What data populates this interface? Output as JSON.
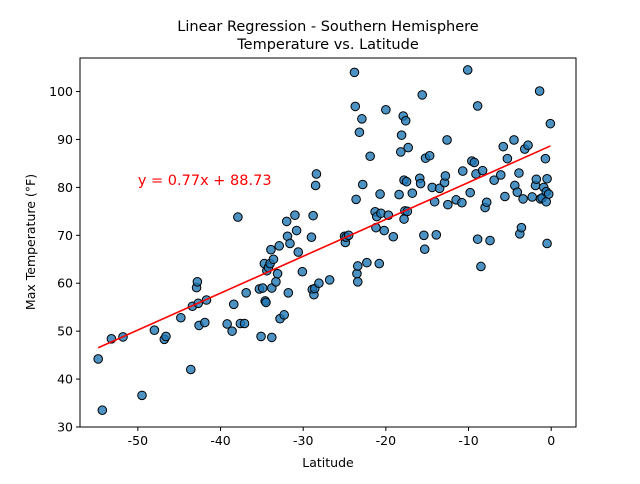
{
  "chart_data": {
    "type": "scatter",
    "title_line1": "Linear Regression - Southern Hemisphere",
    "title_line2": "Temperature vs. Latitude",
    "xlabel": "Latitude",
    "ylabel": "Max Temperature (°F)",
    "xlim": [
      -57,
      3
    ],
    "ylim": [
      30,
      107
    ],
    "xticks": [
      -50,
      -40,
      -30,
      -20,
      -10,
      0
    ],
    "yticks": [
      30,
      40,
      50,
      60,
      70,
      80,
      90,
      100
    ],
    "grid": false,
    "marker_color": "#1f77b4",
    "marker_edge_color": "#000000",
    "regression": {
      "equation": "y = 0.77x + 88.73",
      "slope": 0.77,
      "intercept": 88.73,
      "x_range": [
        -54.8,
        -0.1
      ],
      "color": "#ff0000",
      "label_at": [
        -50,
        80.5
      ]
    },
    "points": [
      [
        -54.8,
        44.2
      ],
      [
        -54.3,
        33.5
      ],
      [
        -53.2,
        48.4
      ],
      [
        -51.8,
        48.8
      ],
      [
        -49.5,
        36.6
      ],
      [
        -48.0,
        50.2
      ],
      [
        -46.8,
        48.3
      ],
      [
        -46.6,
        48.9
      ],
      [
        -44.8,
        52.8
      ],
      [
        -43.6,
        42.0
      ],
      [
        -43.4,
        55.2
      ],
      [
        -42.9,
        59.1
      ],
      [
        -42.8,
        60.3
      ],
      [
        -42.7,
        55.8
      ],
      [
        -42.6,
        51.2
      ],
      [
        -41.9,
        51.8
      ],
      [
        -41.7,
        56.5
      ],
      [
        -39.2,
        51.5
      ],
      [
        -38.6,
        50.0
      ],
      [
        -38.4,
        55.6
      ],
      [
        -37.9,
        73.8
      ],
      [
        -37.6,
        51.6
      ],
      [
        -37.1,
        51.6
      ],
      [
        -36.9,
        58.0
      ],
      [
        -35.3,
        58.8
      ],
      [
        -35.1,
        48.9
      ],
      [
        -34.9,
        59.0
      ],
      [
        -34.7,
        64.1
      ],
      [
        -34.6,
        56.3
      ],
      [
        -34.5,
        56.0
      ],
      [
        -34.4,
        62.6
      ],
      [
        -34.2,
        63.3
      ],
      [
        -34.0,
        64.1
      ],
      [
        -33.9,
        67.0
      ],
      [
        -33.8,
        48.7
      ],
      [
        -33.8,
        59.0
      ],
      [
        -33.6,
        65.0
      ],
      [
        -33.3,
        60.3
      ],
      [
        -33.1,
        62.0
      ],
      [
        -32.9,
        67.8
      ],
      [
        -32.8,
        52.6
      ],
      [
        -32.3,
        53.4
      ],
      [
        -32.0,
        72.9
      ],
      [
        -31.9,
        69.8
      ],
      [
        -31.8,
        58.0
      ],
      [
        -31.6,
        68.3
      ],
      [
        -31.0,
        74.2
      ],
      [
        -30.8,
        71.0
      ],
      [
        -30.6,
        66.5
      ],
      [
        -30.1,
        62.4
      ],
      [
        -29.0,
        69.6
      ],
      [
        -28.9,
        58.7
      ],
      [
        -28.8,
        74.1
      ],
      [
        -28.7,
        57.6
      ],
      [
        -28.6,
        58.9
      ],
      [
        -28.5,
        80.4
      ],
      [
        -28.4,
        82.8
      ],
      [
        -28.1,
        60.0
      ],
      [
        -26.8,
        60.7
      ],
      [
        -25.0,
        69.8
      ],
      [
        -24.9,
        68.5
      ],
      [
        -24.8,
        69.6
      ],
      [
        -24.5,
        70.0
      ],
      [
        -23.8,
        104.0
      ],
      [
        -23.7,
        96.9
      ],
      [
        -23.6,
        77.5
      ],
      [
        -23.5,
        62.0
      ],
      [
        -23.4,
        60.3
      ],
      [
        -23.4,
        63.6
      ],
      [
        -23.2,
        91.5
      ],
      [
        -22.9,
        94.3
      ],
      [
        -22.8,
        80.6
      ],
      [
        -22.3,
        64.3
      ],
      [
        -21.9,
        86.5
      ],
      [
        -21.3,
        74.9
      ],
      [
        -21.2,
        71.6
      ],
      [
        -21.1,
        73.9
      ],
      [
        -20.8,
        64.1
      ],
      [
        -20.7,
        78.6
      ],
      [
        -20.6,
        74.6
      ],
      [
        -20.2,
        71.0
      ],
      [
        -20.0,
        96.2
      ],
      [
        -19.7,
        74.2
      ],
      [
        -19.1,
        69.7
      ],
      [
        -18.4,
        78.5
      ],
      [
        -18.2,
        87.4
      ],
      [
        -18.1,
        90.9
      ],
      [
        -17.9,
        94.9
      ],
      [
        -17.8,
        81.5
      ],
      [
        -17.8,
        73.4
      ],
      [
        -17.7,
        75.1
      ],
      [
        -17.6,
        93.9
      ],
      [
        -17.5,
        81.2
      ],
      [
        -17.4,
        75.0
      ],
      [
        -17.3,
        88.3
      ],
      [
        -16.8,
        78.8
      ],
      [
        -15.9,
        81.9
      ],
      [
        -15.8,
        80.8
      ],
      [
        -15.6,
        99.3
      ],
      [
        -15.4,
        70.0
      ],
      [
        -15.3,
        67.1
      ],
      [
        -15.2,
        86.1
      ],
      [
        -14.7,
        86.6
      ],
      [
        -14.4,
        80.0
      ],
      [
        -14.1,
        77.0
      ],
      [
        -13.9,
        70.1
      ],
      [
        -13.5,
        79.8
      ],
      [
        -12.9,
        81.0
      ],
      [
        -12.8,
        82.4
      ],
      [
        -12.6,
        89.9
      ],
      [
        -12.5,
        76.4
      ],
      [
        -11.5,
        77.4
      ],
      [
        -10.8,
        76.8
      ],
      [
        -10.7,
        83.4
      ],
      [
        -10.1,
        104.5
      ],
      [
        -9.8,
        78.9
      ],
      [
        -9.6,
        85.5
      ],
      [
        -9.3,
        85.2
      ],
      [
        -9.1,
        82.8
      ],
      [
        -8.9,
        97.0
      ],
      [
        -8.9,
        69.2
      ],
      [
        -8.5,
        63.5
      ],
      [
        -8.3,
        83.5
      ],
      [
        -8.0,
        75.8
      ],
      [
        -7.8,
        76.9
      ],
      [
        -7.4,
        68.9
      ],
      [
        -6.9,
        81.5
      ],
      [
        -6.1,
        82.6
      ],
      [
        -5.8,
        88.5
      ],
      [
        -5.6,
        78.1
      ],
      [
        -5.3,
        86.0
      ],
      [
        -4.5,
        89.9
      ],
      [
        -4.4,
        80.4
      ],
      [
        -4.1,
        79.0
      ],
      [
        -3.9,
        83.0
      ],
      [
        -3.8,
        70.3
      ],
      [
        -3.6,
        71.6
      ],
      [
        -3.4,
        77.6
      ],
      [
        -3.2,
        88.0
      ],
      [
        -2.8,
        88.8
      ],
      [
        -2.3,
        78.0
      ],
      [
        -1.9,
        80.4
      ],
      [
        -1.8,
        81.7
      ],
      [
        -1.4,
        100.1
      ],
      [
        -1.3,
        77.6
      ],
      [
        -1.1,
        77.8
      ],
      [
        -0.9,
        80.0
      ],
      [
        -0.7,
        86.0
      ],
      [
        -0.6,
        79.1
      ],
      [
        -0.6,
        77.0
      ],
      [
        -0.5,
        68.3
      ],
      [
        -0.5,
        81.8
      ],
      [
        -0.3,
        78.6
      ],
      [
        -0.1,
        93.3
      ]
    ]
  }
}
